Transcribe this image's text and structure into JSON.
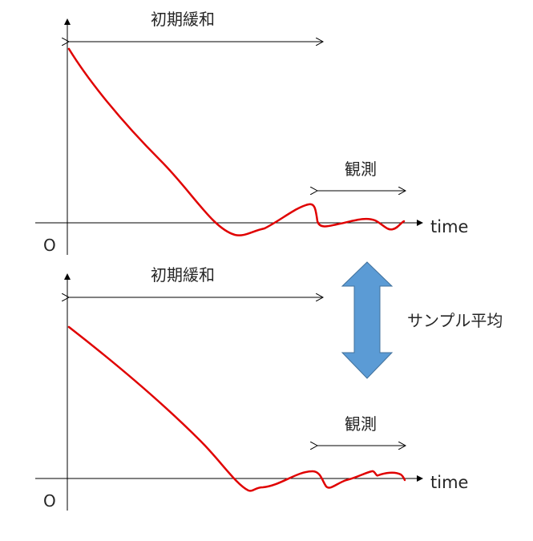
{
  "colors": {
    "curve": "#e00000",
    "axis": "#000000",
    "text": "#262626",
    "arrow_fill": "#5b9bd5",
    "arrow_stroke": "#41719c"
  },
  "icons": {
    "axis_arrow": "axis-arrowhead-icon",
    "double_arrow": "vertical-double-arrow-icon"
  },
  "panels": [
    {
      "origin_label": "O",
      "time_label": "time",
      "relax_label": "初期緩和",
      "obs_label": "観測"
    },
    {
      "origin_label": "O",
      "time_label": "time",
      "relax_label": "初期緩和",
      "obs_label": "観測"
    }
  ],
  "center": {
    "sample_label": "サンプル平均"
  }
}
